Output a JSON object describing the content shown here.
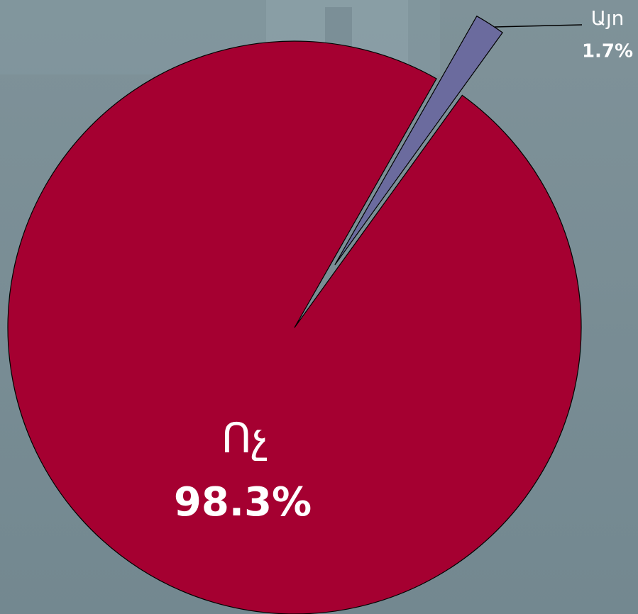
{
  "chart_data": {
    "type": "pie",
    "categories": [
      "Ոչ",
      "Այո"
    ],
    "values": [
      98.3,
      1.7
    ],
    "value_labels": [
      "98.3%",
      "1.7%"
    ],
    "colors": [
      "#a50031",
      "#6b6b9e"
    ]
  }
}
